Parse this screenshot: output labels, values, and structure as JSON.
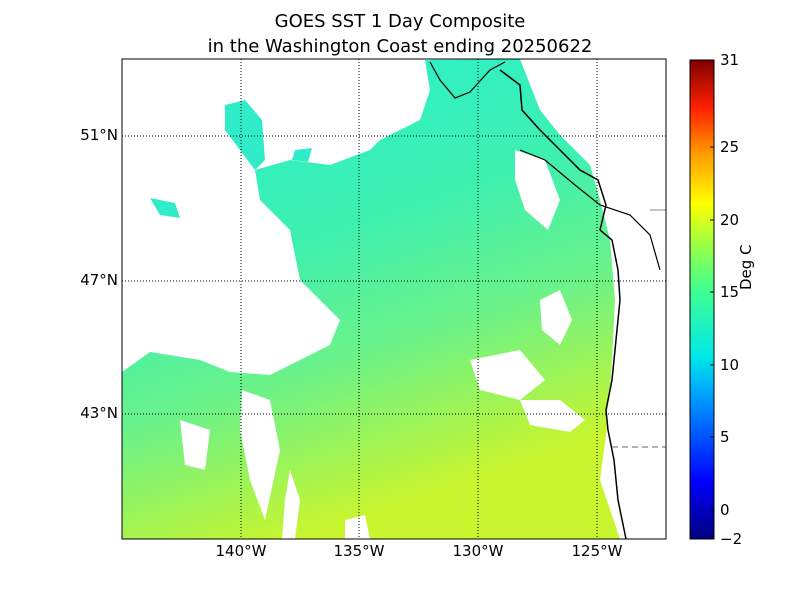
{
  "title_line1": "GOES SST 1 Day Composite",
  "title_line2": "in the Washington Coast ending 20250622",
  "lat_labels": [
    "51°N",
    "47°N",
    "43°N"
  ],
  "lon_labels": [
    "140°W",
    "135°W",
    "130°W",
    "125°W"
  ],
  "colorbar": {
    "label": "Deg C",
    "ticks": [
      "31",
      "25",
      "20",
      "15",
      "10",
      "5",
      "0",
      "−2"
    ],
    "min": -2,
    "max": 31
  },
  "colors": {
    "sst_cool": "#2ee8c0",
    "sst_mid": "#5ef29a",
    "sst_warm": "#b8f542",
    "land": "#ffffff",
    "coast": "#000000"
  }
}
